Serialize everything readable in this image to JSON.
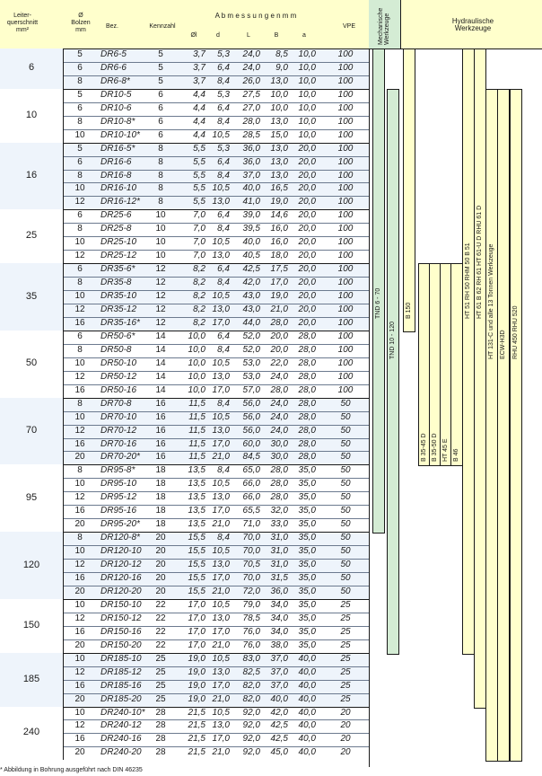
{
  "header": {
    "leiter": "Leiter-\nquerschnitt\nmm²",
    "bolzen": "Ø\nBolzen\nmm",
    "bez": "Bez.",
    "kennzahl": "Kennzahl",
    "abmessungen": "A b m e s s u n g e n   m m",
    "d0": "Øl",
    "d": "d",
    "L": "L",
    "B": "B",
    "a": "a",
    "vpe": "VPE",
    "mech": "Mechanische\nWerkzeuge",
    "hydr": "Hydraulische\nWerkzeuge"
  },
  "groups": [
    {
      "cs": "6",
      "rows": [
        [
          "5",
          "DR6-5",
          "5",
          "3,7",
          "5,3",
          "24,0",
          "8,5",
          "10,0",
          "100"
        ],
        [
          "6",
          "DR6-6",
          "5",
          "3,7",
          "6,4",
          "24,0",
          "9,0",
          "10,0",
          "100"
        ],
        [
          "8",
          "DR6-8*",
          "5",
          "3,7",
          "8,4",
          "26,0",
          "13,0",
          "10,0",
          "100"
        ]
      ]
    },
    {
      "cs": "10",
      "rows": [
        [
          "5",
          "DR10-5",
          "6",
          "4,4",
          "5,3",
          "27,5",
          "10,0",
          "10,0",
          "100"
        ],
        [
          "6",
          "DR10-6",
          "6",
          "4,4",
          "6,4",
          "27,0",
          "10,0",
          "10,0",
          "100"
        ],
        [
          "8",
          "DR10-8*",
          "6",
          "4,4",
          "8,4",
          "28,0",
          "13,0",
          "10,0",
          "100"
        ],
        [
          "10",
          "DR10-10*",
          "6",
          "4,4",
          "10,5",
          "28,5",
          "15,0",
          "10,0",
          "100"
        ]
      ]
    },
    {
      "cs": "16",
      "rows": [
        [
          "5",
          "DR16-5*",
          "8",
          "5,5",
          "5,3",
          "36,0",
          "13,0",
          "20,0",
          "100"
        ],
        [
          "6",
          "DR16-6",
          "8",
          "5,5",
          "6,4",
          "36,0",
          "13,0",
          "20,0",
          "100"
        ],
        [
          "8",
          "DR16-8",
          "8",
          "5,5",
          "8,4",
          "37,0",
          "13,0",
          "20,0",
          "100"
        ],
        [
          "10",
          "DR16-10",
          "8",
          "5,5",
          "10,5",
          "40,0",
          "16,5",
          "20,0",
          "100"
        ],
        [
          "12",
          "DR16-12*",
          "8",
          "5,5",
          "13,0",
          "41,0",
          "19,0",
          "20,0",
          "100"
        ]
      ]
    },
    {
      "cs": "25",
      "rows": [
        [
          "6",
          "DR25-6",
          "10",
          "7,0",
          "6,4",
          "39,0",
          "14,6",
          "20,0",
          "100"
        ],
        [
          "8",
          "DR25-8",
          "10",
          "7,0",
          "8,4",
          "39,5",
          "16,0",
          "20,0",
          "100"
        ],
        [
          "10",
          "DR25-10",
          "10",
          "7,0",
          "10,5",
          "40,0",
          "16,0",
          "20,0",
          "100"
        ],
        [
          "12",
          "DR25-12",
          "10",
          "7,0",
          "13,0",
          "40,5",
          "18,0",
          "20,0",
          "100"
        ]
      ]
    },
    {
      "cs": "35",
      "rows": [
        [
          "6",
          "DR35-6*",
          "12",
          "8,2",
          "6,4",
          "42,5",
          "17,5",
          "20,0",
          "100"
        ],
        [
          "8",
          "DR35-8",
          "12",
          "8,2",
          "8,4",
          "42,0",
          "17,0",
          "20,0",
          "100"
        ],
        [
          "10",
          "DR35-10",
          "12",
          "8,2",
          "10,5",
          "43,0",
          "19,0",
          "20,0",
          "100"
        ],
        [
          "12",
          "DR35-12",
          "12",
          "8,2",
          "13,0",
          "43,0",
          "21,0",
          "20,0",
          "100"
        ],
        [
          "16",
          "DR35-16*",
          "12",
          "8,2",
          "17,0",
          "44,0",
          "28,0",
          "20,0",
          "100"
        ]
      ]
    },
    {
      "cs": "50",
      "rows": [
        [
          "6",
          "DR50-6*",
          "14",
          "10,0",
          "6,4",
          "52,0",
          "20,0",
          "28,0",
          "100"
        ],
        [
          "8",
          "DR50-8",
          "14",
          "10,0",
          "8,4",
          "52,0",
          "20,0",
          "28,0",
          "100"
        ],
        [
          "10",
          "DR50-10",
          "14",
          "10,0",
          "10,5",
          "53,0",
          "22,0",
          "28,0",
          "100"
        ],
        [
          "12",
          "DR50-12",
          "14",
          "10,0",
          "13,0",
          "53,0",
          "24,0",
          "28,0",
          "100"
        ],
        [
          "16",
          "DR50-16",
          "14",
          "10,0",
          "17,0",
          "57,0",
          "28,0",
          "28,0",
          "100"
        ]
      ]
    },
    {
      "cs": "70",
      "rows": [
        [
          "8",
          "DR70-8",
          "16",
          "11,5",
          "8,4",
          "56,0",
          "24,0",
          "28,0",
          "50"
        ],
        [
          "10",
          "DR70-10",
          "16",
          "11,5",
          "10,5",
          "56,0",
          "24,0",
          "28,0",
          "50"
        ],
        [
          "12",
          "DR70-12",
          "16",
          "11,5",
          "13,0",
          "56,0",
          "24,0",
          "28,0",
          "50"
        ],
        [
          "16",
          "DR70-16",
          "16",
          "11,5",
          "17,0",
          "60,0",
          "30,0",
          "28,0",
          "50"
        ],
        [
          "20",
          "DR70-20*",
          "16",
          "11,5",
          "21,0",
          "84,5",
          "30,0",
          "28,0",
          "50"
        ]
      ]
    },
    {
      "cs": "95",
      "rows": [
        [
          "8",
          "DR95-8*",
          "18",
          "13,5",
          "8,4",
          "65,0",
          "28,0",
          "35,0",
          "50"
        ],
        [
          "10",
          "DR95-10",
          "18",
          "13,5",
          "10,5",
          "66,0",
          "28,0",
          "35,0",
          "50"
        ],
        [
          "12",
          "DR95-12",
          "18",
          "13,5",
          "13,0",
          "66,0",
          "28,0",
          "35,0",
          "50"
        ],
        [
          "16",
          "DR95-16",
          "18",
          "13,5",
          "17,0",
          "65,5",
          "32,0",
          "35,0",
          "50"
        ],
        [
          "20",
          "DR95-20*",
          "18",
          "13,5",
          "21,0",
          "71,0",
          "33,0",
          "35,0",
          "50"
        ]
      ]
    },
    {
      "cs": "120",
      "rows": [
        [
          "8",
          "DR120-8*",
          "20",
          "15,5",
          "8,4",
          "70,0",
          "31,0",
          "35,0",
          "50"
        ],
        [
          "10",
          "DR120-10",
          "20",
          "15,5",
          "10,5",
          "70,0",
          "31,0",
          "35,0",
          "50"
        ],
        [
          "12",
          "DR120-12",
          "20",
          "15,5",
          "13,0",
          "70,5",
          "31,0",
          "35,0",
          "50"
        ],
        [
          "16",
          "DR120-16",
          "20",
          "15,5",
          "17,0",
          "70,0",
          "31,5",
          "35,0",
          "50"
        ],
        [
          "20",
          "DR120-20",
          "20",
          "15,5",
          "21,0",
          "72,0",
          "36,0",
          "35,0",
          "50"
        ]
      ]
    },
    {
      "cs": "150",
      "rows": [
        [
          "10",
          "DR150-10",
          "22",
          "17,0",
          "10,5",
          "79,0",
          "34,0",
          "35,0",
          "25"
        ],
        [
          "12",
          "DR150-12",
          "22",
          "17,0",
          "13,0",
          "78,5",
          "34,0",
          "35,0",
          "25"
        ],
        [
          "16",
          "DR150-16",
          "22",
          "17,0",
          "17,0",
          "76,0",
          "34,0",
          "35,0",
          "25"
        ],
        [
          "20",
          "DR150-20",
          "22",
          "17,0",
          "21,0",
          "76,0",
          "38,0",
          "35,0",
          "25"
        ]
      ]
    },
    {
      "cs": "185",
      "rows": [
        [
          "10",
          "DR185-10",
          "25",
          "19,0",
          "10,5",
          "83,0",
          "37,0",
          "40,0",
          "25"
        ],
        [
          "12",
          "DR185-12",
          "25",
          "19,0",
          "13,0",
          "82,5",
          "37,0",
          "40,0",
          "25"
        ],
        [
          "16",
          "DR185-16",
          "25",
          "19,0",
          "17,0",
          "82,0",
          "37,0",
          "40,0",
          "25"
        ],
        [
          "20",
          "DR185-20",
          "25",
          "19,0",
          "21,0",
          "82,0",
          "40,0",
          "40,0",
          "25"
        ]
      ]
    },
    {
      "cs": "240",
      "rows": [
        [
          "10",
          "DR240-10*",
          "28",
          "21,5",
          "10,5",
          "92,0",
          "42,0",
          "40,0",
          "20"
        ],
        [
          "12",
          "DR240-12",
          "28",
          "21,5",
          "13,0",
          "92,0",
          "42,5",
          "40,0",
          "20"
        ],
        [
          "16",
          "DR240-16",
          "28",
          "21,5",
          "17,0",
          "92,0",
          "42,5",
          "40,0",
          "20"
        ],
        [
          "20",
          "DR240-20",
          "28",
          "21,5",
          "21,0",
          "92,0",
          "45,0",
          "40,0",
          "20"
        ]
      ]
    }
  ],
  "tools": [
    {
      "label": "TND 6 - 70",
      "color": "#d4ecd4",
      "from": 0,
      "to": 7
    },
    {
      "label": "TND 10 - 120",
      "color": "#d4ecd4",
      "from": 1,
      "to": 9
    },
    {
      "label": "B 150",
      "color": "#ffffcc",
      "from": 0,
      "to": 4
    },
    {
      "label": "B 35-45 D",
      "color": "#ffffcc",
      "from": 4,
      "to": 6
    },
    {
      "label": "B 35-50 D",
      "color": "#ffffcc",
      "from": 4,
      "to": 6
    },
    {
      "label": "HT 45 E",
      "color": "#ffffcc",
      "from": 4,
      "to": 6
    },
    {
      "label": "B 46",
      "color": "#ffffcc",
      "from": 4,
      "to": 6
    },
    {
      "label": "HT 51   RH 50   RHM 50   B 51",
      "color": "#ffffcc",
      "from": 0,
      "to": 9
    },
    {
      "label": "HT 61   B 62   RH 61   HT 61-U D   RHU 61 D",
      "color": "#ffffcc",
      "from": 0,
      "to": 10
    },
    {
      "label": "HT 131-C und alle 13 Tonnen Werkzeuge",
      "color": "#ffffcc",
      "from": 1,
      "to": 11
    },
    {
      "label": "ECW-H3D",
      "color": "#ffffcc",
      "from": 1,
      "to": 11
    },
    {
      "label": "RHU 450   RHU 520",
      "color": "#ffffcc",
      "from": 1,
      "to": 11
    }
  ],
  "footnote": "* Abbildung in Bohrung ausgeführt nach DIN 46235"
}
